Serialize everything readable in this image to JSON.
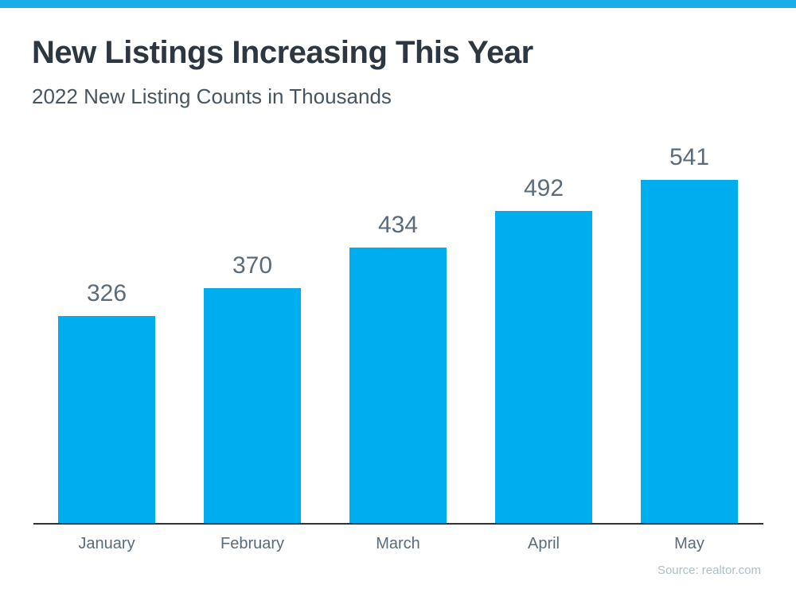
{
  "header": {
    "title": "New Listings Increasing This Year",
    "subtitle": "2022 New Listing Counts in Thousands"
  },
  "chart_data": {
    "type": "bar",
    "categories": [
      "January",
      "February",
      "March",
      "April",
      "May"
    ],
    "values": [
      326,
      370,
      434,
      492,
      541
    ],
    "title": "New Listings Increasing This Year",
    "subtitle": "2022 New Listing Counts in Thousands",
    "xlabel": "",
    "ylabel": "",
    "ylim": [
      0,
      560
    ],
    "grid": false,
    "legend_position": "none",
    "value_labels_shown": true,
    "bar_color": "#00AEEF"
  },
  "footer": {
    "source": "Source: realtor.com"
  },
  "colors": {
    "accent_band": "#1AAEE9",
    "bar": "#00AEEF",
    "title_text": "#2D3741",
    "subtitle_text": "#47555F",
    "label_text": "#5A6B7A",
    "axis_line": "#333333",
    "source_text": "#AEBEC8"
  }
}
